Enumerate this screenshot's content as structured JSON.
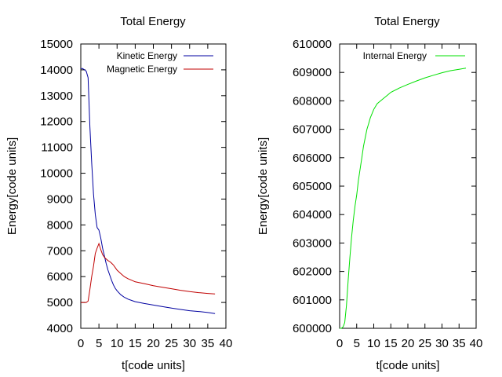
{
  "chart_data": [
    {
      "type": "line",
      "title": "Total Energy",
      "xlabel": "t[code units]",
      "ylabel": "Energy[code units]",
      "xlim": [
        0,
        40
      ],
      "ylim": [
        4000,
        15000
      ],
      "xticks": [
        0,
        5,
        10,
        15,
        20,
        25,
        30,
        35,
        40
      ],
      "yticks": [
        4000,
        5000,
        6000,
        7000,
        8000,
        9000,
        10000,
        11000,
        12000,
        13000,
        14000,
        15000
      ],
      "grid": false,
      "legend": "top-right",
      "series": [
        {
          "name": "Kinetic Energy",
          "color": "#0000a0",
          "x": [
            0,
            0.5,
            1.0,
            1.5,
            2.0,
            2.5,
            3.0,
            3.5,
            4.0,
            4.5,
            5.0,
            5.5,
            6.0,
            6.5,
            7.0,
            7.5,
            8.0,
            8.5,
            9.0,
            9.5,
            10.0,
            11.0,
            12.0,
            13.0,
            14.0,
            15.0,
            17.5,
            20.0,
            22.5,
            25.0,
            27.5,
            30.0,
            32.5,
            35.0,
            37.0
          ],
          "y": [
            14050,
            14050,
            14000,
            13950,
            13700,
            11800,
            10400,
            9200,
            8400,
            7900,
            7800,
            7500,
            7100,
            6800,
            6500,
            6250,
            6050,
            5850,
            5680,
            5550,
            5450,
            5300,
            5200,
            5130,
            5080,
            5030,
            4960,
            4900,
            4840,
            4780,
            4730,
            4680,
            4650,
            4610,
            4570
          ]
        },
        {
          "name": "Magnetic Energy",
          "color": "#c00000",
          "x": [
            0,
            0.5,
            1.0,
            1.5,
            2.0,
            2.5,
            3.0,
            3.5,
            4.0,
            4.5,
            5.0,
            5.5,
            6.0,
            6.5,
            7.0,
            7.5,
            8.0,
            8.5,
            9.0,
            9.5,
            10.0,
            11.0,
            12.0,
            13.0,
            14.0,
            15.0,
            17.5,
            20.0,
            22.5,
            25.0,
            27.5,
            30.0,
            32.5,
            35.0,
            37.0
          ],
          "y": [
            5000,
            5000,
            5000,
            5000,
            5050,
            5500,
            6000,
            6400,
            6900,
            7100,
            7280,
            7050,
            6850,
            6750,
            6680,
            6620,
            6580,
            6520,
            6450,
            6350,
            6250,
            6120,
            6000,
            5920,
            5860,
            5800,
            5730,
            5650,
            5590,
            5530,
            5470,
            5420,
            5380,
            5350,
            5330
          ]
        }
      ]
    },
    {
      "type": "line",
      "title": "Total Energy",
      "xlabel": "t[code units]",
      "ylabel": "Energy[code units]",
      "xlim": [
        0,
        40
      ],
      "ylim": [
        600000,
        610000
      ],
      "xticks": [
        0,
        5,
        10,
        15,
        20,
        25,
        30,
        35,
        40
      ],
      "yticks": [
        600000,
        601000,
        602000,
        603000,
        604000,
        605000,
        606000,
        607000,
        608000,
        609000,
        610000
      ],
      "grid": false,
      "legend": "top-right",
      "series": [
        {
          "name": "Internal Energy",
          "color": "#00e000",
          "x": [
            0,
            0.5,
            1.0,
            1.5,
            2.0,
            2.5,
            3.0,
            3.5,
            4.0,
            4.5,
            5.0,
            5.5,
            6.0,
            6.5,
            7.0,
            7.5,
            8.0,
            8.5,
            9.0,
            9.5,
            10.0,
            11.0,
            12.0,
            13.0,
            14.0,
            15.0,
            17.5,
            20.0,
            22.5,
            25.0,
            27.5,
            30.0,
            32.5,
            35.0,
            37.0
          ],
          "y": [
            600000,
            600000,
            600050,
            600200,
            600800,
            601700,
            602500,
            603200,
            603800,
            604300,
            604700,
            605200,
            605600,
            606000,
            606400,
            606700,
            607000,
            607200,
            607400,
            607550,
            607700,
            607900,
            608000,
            608100,
            608200,
            608300,
            608450,
            608580,
            608700,
            608810,
            608900,
            608990,
            609060,
            609110,
            609150
          ]
        }
      ]
    }
  ]
}
